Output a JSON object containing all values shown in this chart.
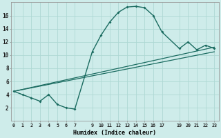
{
  "title": "",
  "xlabel": "Humidex (Indice chaleur)",
  "bg_color": "#ceecea",
  "grid_color": "#aed8d4",
  "line_color": "#1a6b60",
  "series_main": {
    "x": [
      0,
      1,
      2,
      3,
      4,
      5,
      6,
      7,
      9,
      10,
      11,
      12,
      13,
      14,
      15,
      16,
      17,
      19,
      20,
      21,
      22,
      23
    ],
    "y": [
      4.5,
      4.0,
      3.5,
      3.0,
      4.0,
      2.5,
      2.0,
      1.8,
      10.5,
      13.0,
      15.0,
      16.5,
      17.3,
      17.4,
      17.2,
      16.0,
      13.5,
      11.0,
      12.0,
      10.8,
      11.5,
      11.0
    ]
  },
  "series_line1": {
    "x": [
      0,
      23
    ],
    "y": [
      4.5,
      10.5
    ]
  },
  "series_line2": {
    "x": [
      0,
      23
    ],
    "y": [
      4.5,
      11.2
    ]
  },
  "xlim": [
    -0.3,
    23.5
  ],
  "ylim": [
    0,
    18
  ],
  "xticks": [
    0,
    1,
    2,
    3,
    4,
    5,
    6,
    7,
    9,
    10,
    11,
    12,
    13,
    14,
    15,
    16,
    17,
    19,
    20,
    21,
    22,
    23
  ],
  "yticks": [
    2,
    4,
    6,
    8,
    10,
    12,
    14,
    16
  ]
}
